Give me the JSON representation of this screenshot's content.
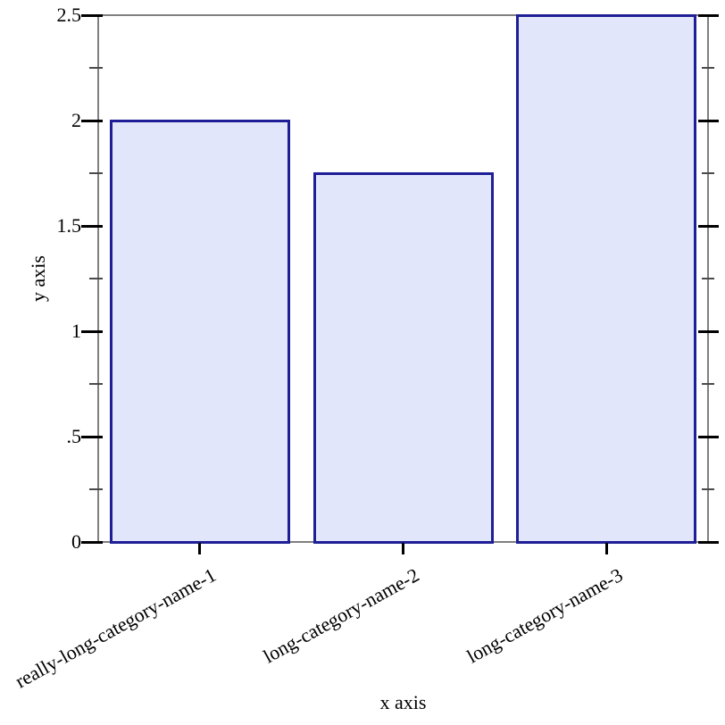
{
  "chart_data": {
    "type": "bar",
    "title": "",
    "xlabel": "x axis",
    "ylabel": "y axis",
    "categories": [
      "really-long-category-name-1",
      "long-category-name-2",
      "long-category-name-3"
    ],
    "values": [
      2,
      1.75,
      2.5
    ],
    "ylim": [
      0,
      2.5
    ],
    "y_major_ticks": [
      {
        "value": 0,
        "label": "0"
      },
      {
        "value": 0.5,
        "label": ".5"
      },
      {
        "value": 1,
        "label": "1"
      },
      {
        "value": 1.5,
        "label": "1.5"
      },
      {
        "value": 2,
        "label": "2"
      },
      {
        "value": 2.5,
        "label": "2.5"
      }
    ],
    "y_minor_ticks": [
      0.25,
      0.75,
      1.25,
      1.75,
      2.25
    ],
    "grid": false,
    "legend": "none",
    "category_label_rotation_deg": -29,
    "colors": {
      "bar_fill": "#e2e6fa",
      "bar_border": "#1e1e96",
      "axis_line": "#808080",
      "tick_major": "#000000",
      "tick_minor": "#4a4a4a",
      "text": "#000000",
      "background": "#ffffff"
    }
  }
}
